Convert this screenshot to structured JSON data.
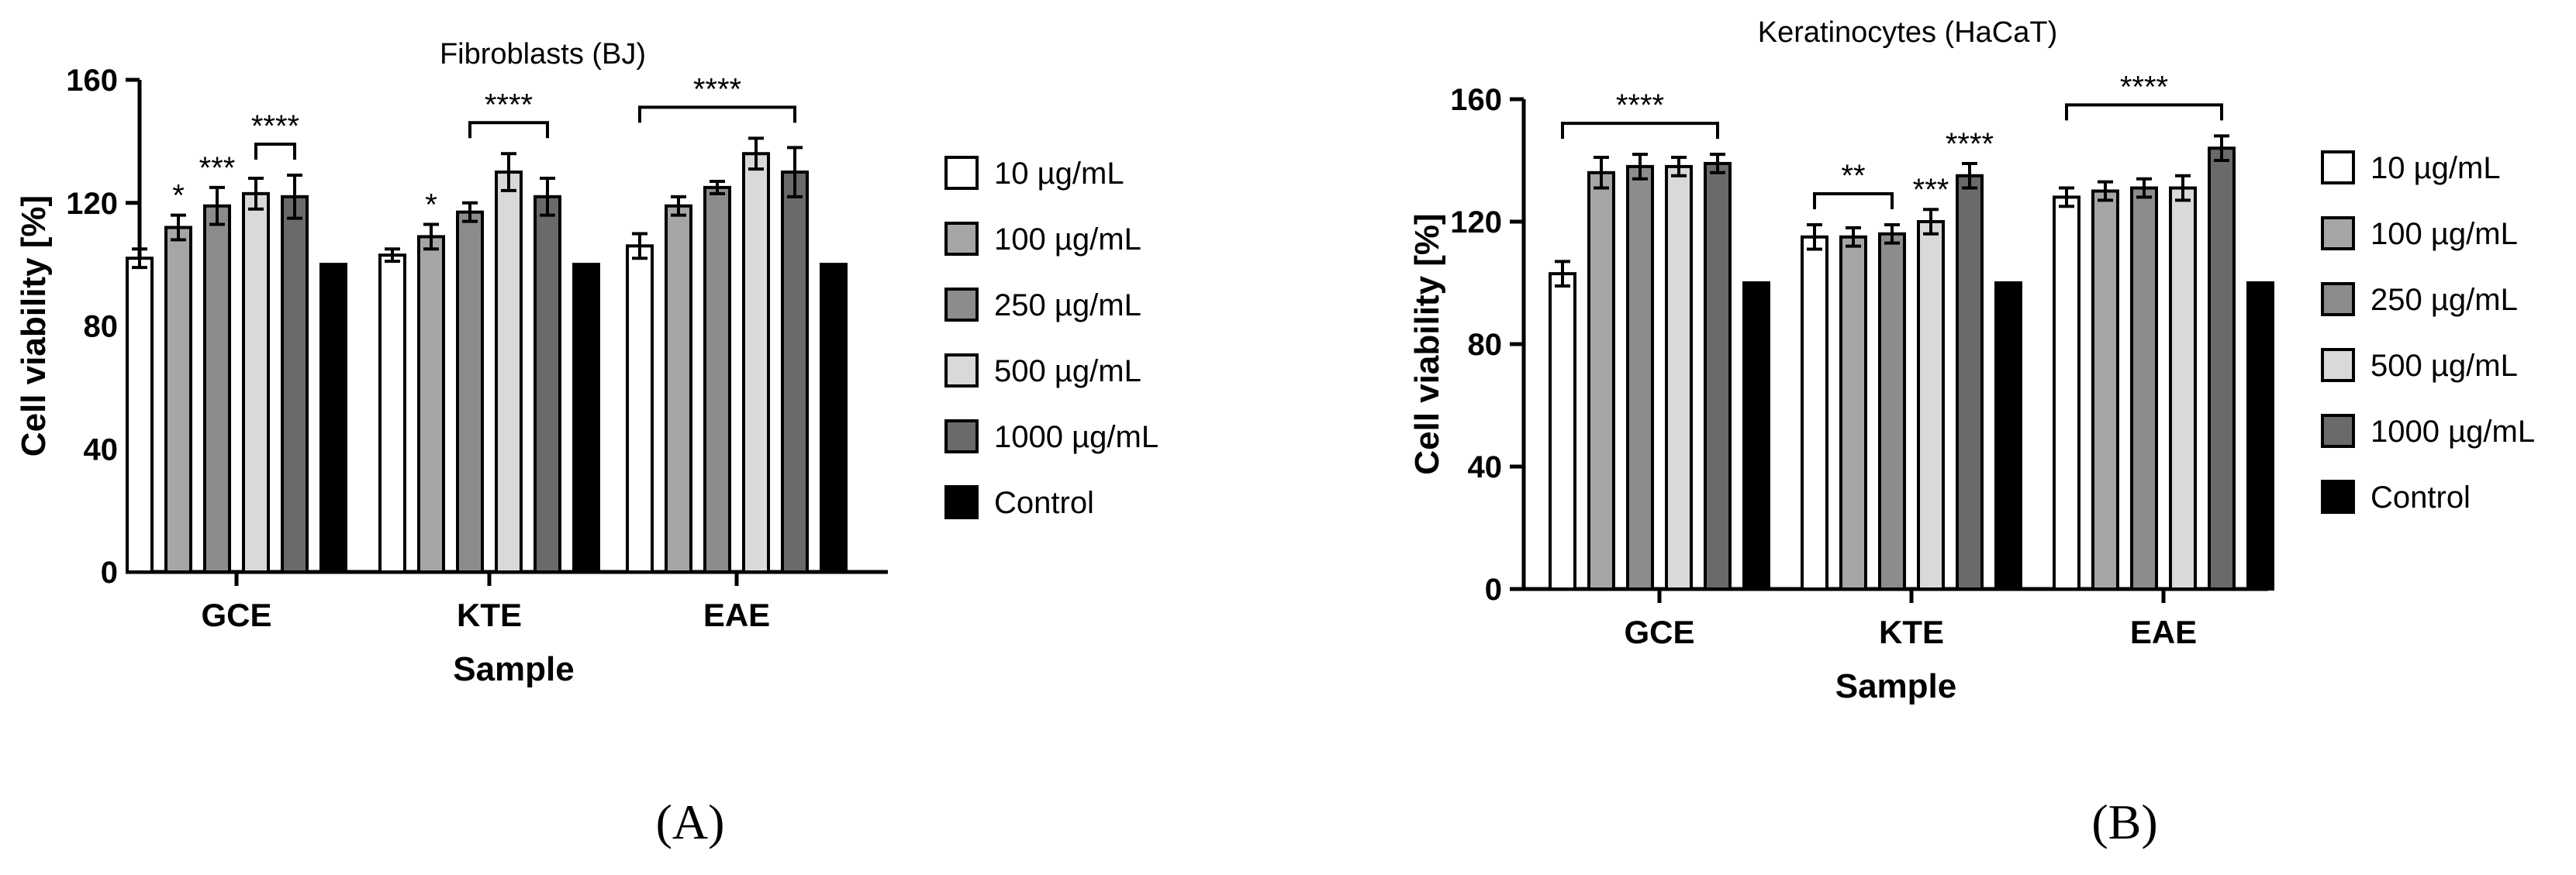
{
  "figure": {
    "panel_labels": [
      "(A)",
      "(B)"
    ]
  },
  "colors": {
    "s10": "#ffffff",
    "s100": "#a6a6a6",
    "s250": "#8c8c8c",
    "s500": "#d9d9d9",
    "s1000": "#6a6a6a",
    "control": "#000000",
    "axis": "#000000"
  },
  "chart_data": [
    {
      "type": "bar",
      "title": "Fibroblasts (BJ)",
      "xlabel": "Sample",
      "ylabel": "Cell viability [%]",
      "ylim": [
        0,
        160
      ],
      "yticks": [
        0,
        40,
        80,
        120,
        160
      ],
      "categories": [
        "GCE",
        "KTE",
        "EAE"
      ],
      "legend": {
        "position": "right"
      },
      "series": [
        {
          "name": "10 µg/mL",
          "values": [
            102,
            103,
            106
          ],
          "errors": [
            3,
            2,
            4
          ]
        },
        {
          "name": "100 µg/mL",
          "values": [
            112,
            109,
            119
          ],
          "errors": [
            4,
            4,
            3
          ]
        },
        {
          "name": "250 µg/mL",
          "values": [
            119,
            117,
            125
          ],
          "errors": [
            6,
            3,
            2
          ]
        },
        {
          "name": "500 µg/mL",
          "values": [
            123,
            130,
            136
          ],
          "errors": [
            5,
            6,
            5
          ]
        },
        {
          "name": "1000 µg/mL",
          "values": [
            122,
            122,
            130
          ],
          "errors": [
            7,
            6,
            8
          ]
        },
        {
          "name": "Control",
          "values": [
            100,
            100,
            100
          ],
          "errors": [
            0,
            0,
            0
          ]
        }
      ],
      "significance": [
        {
          "label": "*",
          "group": 0,
          "series": 1
        },
        {
          "label": "***",
          "group": 0,
          "series": 2
        },
        {
          "label": "****",
          "group": 0,
          "from": 3,
          "to": 4,
          "bracket": true
        },
        {
          "label": "*",
          "group": 1,
          "series": 1
        },
        {
          "label": "****",
          "group": 1,
          "from": 2,
          "to": 4,
          "bracket": true
        },
        {
          "label": "****",
          "group": 2,
          "from": 0,
          "to": 4,
          "bracket": true
        }
      ]
    },
    {
      "type": "bar",
      "title": "Keratinocytes (HaCaT)",
      "xlabel": "Sample",
      "ylabel": "Cell viability [%]",
      "ylim": [
        0,
        160
      ],
      "yticks": [
        0,
        40,
        80,
        120,
        160
      ],
      "categories": [
        "GCE",
        "KTE",
        "EAE"
      ],
      "legend": {
        "position": "right"
      },
      "series": [
        {
          "name": "10 µg/mL",
          "values": [
            103,
            115,
            128
          ],
          "errors": [
            4,
            4,
            3
          ]
        },
        {
          "name": "100 µg/mL",
          "values": [
            136,
            115,
            130
          ],
          "errors": [
            5,
            3,
            3
          ]
        },
        {
          "name": "250 µg/mL",
          "values": [
            138,
            116,
            131
          ],
          "errors": [
            4,
            3,
            3
          ]
        },
        {
          "name": "500 µg/mL",
          "values": [
            138,
            120,
            131
          ],
          "errors": [
            3,
            4,
            4
          ]
        },
        {
          "name": "1000 µg/mL",
          "values": [
            139,
            135,
            144
          ],
          "errors": [
            3,
            4,
            4
          ]
        },
        {
          "name": "Control",
          "values": [
            100,
            100,
            100
          ],
          "errors": [
            0,
            0,
            0
          ]
        }
      ],
      "significance": [
        {
          "label": "****",
          "group": 0,
          "from": 0,
          "to": 4,
          "bracket": true
        },
        {
          "label": "**",
          "group": 1,
          "from": 0,
          "to": 2,
          "bracket": true
        },
        {
          "label": "***",
          "group": 1,
          "series": 3
        },
        {
          "label": "****",
          "group": 1,
          "series": 4
        },
        {
          "label": "****",
          "group": 2,
          "from": 0,
          "to": 4,
          "bracket": true
        }
      ]
    }
  ]
}
